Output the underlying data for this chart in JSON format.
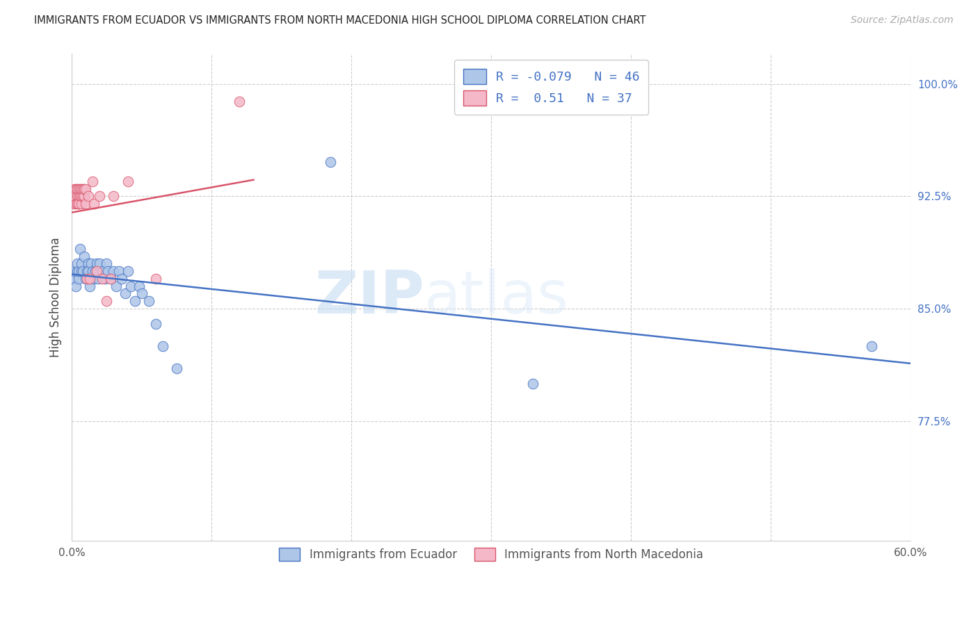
{
  "title": "IMMIGRANTS FROM ECUADOR VS IMMIGRANTS FROM NORTH MACEDONIA HIGH SCHOOL DIPLOMA CORRELATION CHART",
  "source": "Source: ZipAtlas.com",
  "ylabel": "High School Diploma",
  "legend_label_blue": "Immigrants from Ecuador",
  "legend_label_pink": "Immigrants from North Macedonia",
  "R_blue": -0.079,
  "N_blue": 46,
  "R_pink": 0.51,
  "N_pink": 37,
  "xlim": [
    0.0,
    0.6
  ],
  "ylim": [
    0.695,
    1.02
  ],
  "yticks": [
    0.775,
    0.85,
    0.925,
    1.0
  ],
  "ytick_labels": [
    "77.5%",
    "85.0%",
    "92.5%",
    "100.0%"
  ],
  "xticks": [
    0.0,
    0.1,
    0.2,
    0.3,
    0.4,
    0.5,
    0.6
  ],
  "xtick_labels": [
    "0.0%",
    "",
    "",
    "",
    "",
    "",
    "60.0%"
  ],
  "color_blue": "#aec6e8",
  "color_pink": "#f4b8c8",
  "color_blue_line": "#4472c4",
  "color_pink_line": "#d9546a",
  "watermark_zip": "ZIP",
  "watermark_atlas": "atlas",
  "ecuador_x": [
    0.001,
    0.002,
    0.003,
    0.004,
    0.004,
    0.005,
    0.005,
    0.006,
    0.007,
    0.007,
    0.008,
    0.009,
    0.01,
    0.011,
    0.012,
    0.012,
    0.013,
    0.014,
    0.015,
    0.016,
    0.017,
    0.018,
    0.019,
    0.02,
    0.022,
    0.024,
    0.025,
    0.026,
    0.028,
    0.03,
    0.032,
    0.034,
    0.036,
    0.038,
    0.04,
    0.042,
    0.045,
    0.048,
    0.05,
    0.055,
    0.06,
    0.065,
    0.075,
    0.185,
    0.33,
    0.572
  ],
  "ecuador_y": [
    0.87,
    0.875,
    0.865,
    0.875,
    0.88,
    0.87,
    0.875,
    0.89,
    0.875,
    0.88,
    0.875,
    0.885,
    0.87,
    0.875,
    0.88,
    0.875,
    0.865,
    0.88,
    0.875,
    0.87,
    0.875,
    0.88,
    0.87,
    0.88,
    0.875,
    0.87,
    0.88,
    0.875,
    0.87,
    0.875,
    0.865,
    0.875,
    0.87,
    0.86,
    0.875,
    0.865,
    0.855,
    0.865,
    0.86,
    0.855,
    0.84,
    0.825,
    0.81,
    0.948,
    0.8,
    0.825
  ],
  "macedonia_x": [
    0.001,
    0.002,
    0.002,
    0.003,
    0.003,
    0.004,
    0.004,
    0.004,
    0.005,
    0.005,
    0.005,
    0.005,
    0.006,
    0.006,
    0.007,
    0.007,
    0.007,
    0.008,
    0.008,
    0.009,
    0.009,
    0.01,
    0.01,
    0.011,
    0.012,
    0.013,
    0.015,
    0.016,
    0.018,
    0.02,
    0.022,
    0.025,
    0.028,
    0.03,
    0.04,
    0.06,
    0.12
  ],
  "macedonia_y": [
    0.92,
    0.93,
    0.925,
    0.92,
    0.93,
    0.925,
    0.92,
    0.93,
    0.92,
    0.925,
    0.93,
    0.92,
    0.925,
    0.93,
    0.92,
    0.925,
    0.93,
    0.925,
    0.93,
    0.925,
    0.93,
    0.92,
    0.93,
    0.87,
    0.925,
    0.87,
    0.935,
    0.92,
    0.875,
    0.925,
    0.87,
    0.855,
    0.87,
    0.925,
    0.935,
    0.87,
    0.988
  ]
}
